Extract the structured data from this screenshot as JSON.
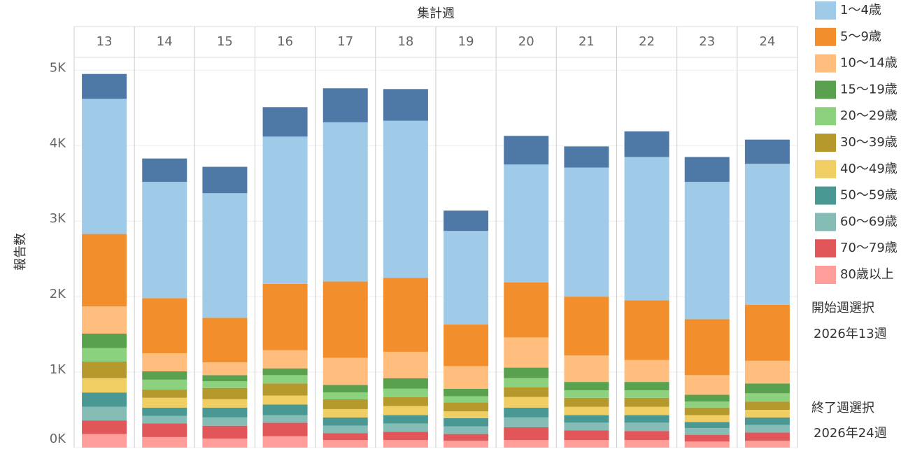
{
  "chart_data": {
    "type": "bar",
    "stacked": true,
    "x_label": "集計週",
    "y_label": "報告数",
    "categories": [
      "13",
      "14",
      "15",
      "16",
      "17",
      "18",
      "19",
      "20",
      "21",
      "22",
      "23",
      "24"
    ],
    "series": [
      {
        "color": "#4e79a7",
        "values": [
          330,
          310,
          350,
          390,
          450,
          420,
          270,
          380,
          280,
          340,
          330,
          320
        ]
      },
      {
        "name": "1～4歳",
        "color": "#a0cbe8",
        "values": [
          1790,
          1540,
          1650,
          1950,
          2110,
          2080,
          1240,
          1560,
          1710,
          1900,
          1820,
          1870
        ]
      },
      {
        "name": "5～9歳",
        "color": "#f28e2b",
        "values": [
          960,
          730,
          590,
          880,
          1010,
          980,
          550,
          730,
          780,
          790,
          740,
          740
        ]
      },
      {
        "name": "10～14歳",
        "color": "#ffbe7d",
        "values": [
          360,
          240,
          170,
          240,
          360,
          350,
          300,
          400,
          350,
          290,
          260,
          300
        ]
      },
      {
        "name": "15～19歳",
        "color": "#59a14f",
        "values": [
          190,
          110,
          80,
          90,
          100,
          140,
          100,
          140,
          110,
          110,
          90,
          130
        ]
      },
      {
        "name": "20～29歳",
        "color": "#8cd17d",
        "values": [
          180,
          130,
          90,
          110,
          90,
          110,
          80,
          120,
          100,
          100,
          80,
          110
        ]
      },
      {
        "name": "30～39歳",
        "color": "#b6992d",
        "values": [
          220,
          110,
          150,
          160,
          130,
          120,
          120,
          130,
          120,
          120,
          100,
          110
        ]
      },
      {
        "name": "40～49歳",
        "color": "#f1ce63",
        "values": [
          190,
          130,
          110,
          120,
          110,
          120,
          90,
          140,
          110,
          110,
          90,
          100
        ]
      },
      {
        "name": "50～59歳",
        "color": "#499894",
        "values": [
          190,
          110,
          130,
          140,
          110,
          110,
          110,
          130,
          100,
          100,
          80,
          100
        ]
      },
      {
        "name": "60～69歳",
        "color": "#86bcb6",
        "values": [
          180,
          100,
          110,
          100,
          100,
          110,
          100,
          130,
          100,
          110,
          90,
          100
        ]
      },
      {
        "name": "70～79歳",
        "color": "#e15759",
        "values": [
          180,
          180,
          170,
          180,
          90,
          110,
          90,
          170,
          130,
          120,
          90,
          110
        ]
      },
      {
        "name": "80歳以上",
        "color": "#ff9d9a",
        "values": [
          180,
          140,
          120,
          150,
          100,
          100,
          90,
          100,
          100,
          100,
          80,
          90
        ]
      }
    ],
    "ylim": [
      0,
      5170
    ],
    "yticks": [
      {
        "value": 0,
        "label": "0K"
      },
      {
        "value": 1000,
        "label": "1K"
      },
      {
        "value": 2000,
        "label": "2K"
      },
      {
        "value": 3000,
        "label": "3K"
      },
      {
        "value": 4000,
        "label": "4K"
      },
      {
        "value": 5000,
        "label": "5K"
      }
    ],
    "grid": true
  },
  "filters": {
    "start_label": "開始週選択",
    "start_value": "2026年13週",
    "end_label": "終了週選択",
    "end_value": "2026年24週"
  }
}
